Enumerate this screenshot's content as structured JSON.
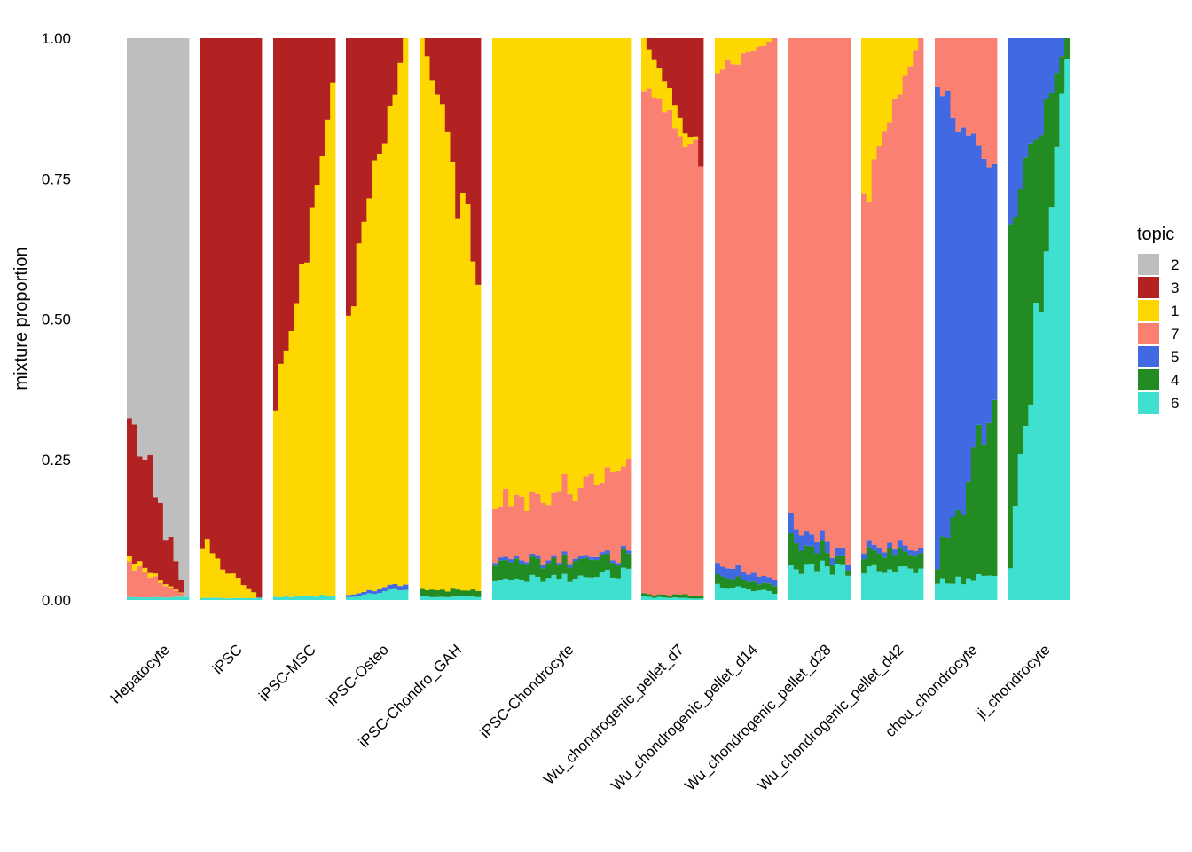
{
  "chart_data": {
    "type": "structure-plot (stacked bar, one bar per cell)",
    "title": "",
    "xlabel": "",
    "ylabel": "mixture proportion",
    "ylim": [
      0,
      1
    ],
    "yticks": [
      {
        "value": 0.0,
        "label": "0.00"
      },
      {
        "value": 0.25,
        "label": "0.25"
      },
      {
        "value": 0.5,
        "label": "0.50"
      },
      {
        "value": 0.75,
        "label": "0.75"
      },
      {
        "value": 1.0,
        "label": "1.00"
      }
    ],
    "legend": {
      "title": "topic",
      "position": "right",
      "items": [
        {
          "topic": "2",
          "color": "#BEBEBE"
        },
        {
          "topic": "3",
          "color": "#B22222"
        },
        {
          "topic": "1",
          "color": "#FFD700"
        },
        {
          "topic": "7",
          "color": "#FA8072"
        },
        {
          "topic": "5",
          "color": "#4169E1"
        },
        {
          "topic": "4",
          "color": "#228B22"
        },
        {
          "topic": "6",
          "color": "#40E0D0"
        }
      ]
    },
    "stack_order_bottom_to_top": [
      "6",
      "4",
      "5",
      "7",
      "1",
      "3",
      "2"
    ],
    "groups": [
      {
        "name": "Hepatocyte",
        "profile": {
          "6": [
            0.005,
            0.005
          ],
          "7": [
            0.06,
            0.0
          ],
          "3": [
            0.26,
            0.0
          ],
          "1": [
            0.01,
            0.0
          ],
          "2": [
            0.665,
            0.995
          ]
        }
      },
      {
        "name": "iPSC",
        "profile": {
          "6": [
            0.004,
            0.003
          ],
          "1": [
            0.095,
            0.0
          ],
          "3": [
            0.901,
            0.997
          ]
        }
      },
      {
        "name": "iPSC-MSC",
        "profile": {
          "6": [
            0.006,
            0.008
          ],
          "1": [
            0.32,
            0.91
          ],
          "3": [
            0.674,
            0.082
          ]
        }
      },
      {
        "name": "iPSC-Osteo",
        "profile": {
          "6": [
            0.005,
            0.02
          ],
          "5": [
            0.003,
            0.01
          ],
          "1": [
            0.5,
            0.97
          ],
          "3": [
            0.492,
            0.0
          ]
        }
      },
      {
        "name": "iPSC-Chondro_GAH",
        "profile": {
          "6": [
            0.006,
            0.006
          ],
          "4": [
            0.012,
            0.012
          ],
          "1": [
            0.982,
            0.582
          ],
          "3": [
            0.0,
            0.4
          ]
        }
      },
      {
        "name": "iPSC-Chondrocyte",
        "profile": {
          "6": [
            0.03,
            0.05
          ],
          "4": [
            0.03,
            0.03
          ],
          "5": [
            0.005,
            0.005
          ],
          "7": [
            0.09,
            0.16
          ],
          "1": [
            0.845,
            0.755
          ]
        }
      },
      {
        "name": "Wu_chondrogenic_pellet_d7",
        "profile": {
          "6": [
            0.005,
            0.003
          ],
          "4": [
            0.005,
            0.005
          ],
          "7": [
            0.91,
            0.78
          ],
          "1": [
            0.08,
            0.0
          ],
          "3": [
            0.0,
            0.212
          ]
        }
      },
      {
        "name": "Wu_chondrogenic_pellet_d14",
        "profile": {
          "6": [
            0.03,
            0.01
          ],
          "4": [
            0.02,
            0.01
          ],
          "5": [
            0.02,
            0.01
          ],
          "7": [
            0.87,
            0.97
          ],
          "1": [
            0.06,
            0.0
          ]
        }
      },
      {
        "name": "Wu_chondrogenic_pellet_d28",
        "profile": {
          "6": [
            0.06,
            0.05
          ],
          "4": [
            0.05,
            0.01
          ],
          "5": [
            0.03,
            0.01
          ],
          "7": [
            0.86,
            0.93
          ]
        }
      },
      {
        "name": "Wu_chondrogenic_pellet_d42",
        "profile": {
          "6": [
            0.05,
            0.06
          ],
          "4": [
            0.03,
            0.03
          ],
          "5": [
            0.01,
            0.01
          ],
          "7": [
            0.64,
            0.9
          ],
          "1": [
            0.27,
            0.0
          ]
        }
      },
      {
        "name": "chou_chondrocyte",
        "profile": {
          "6": [
            0.03,
            0.04
          ],
          "4": [
            0.03,
            0.3
          ],
          "5": [
            0.85,
            0.43
          ],
          "7": [
            0.09,
            0.23
          ]
        }
      },
      {
        "name": "ji_chondrocyte",
        "profile": {
          "6": [
            0.06,
            0.97
          ],
          "4": [
            0.6,
            0.03
          ],
          "5": [
            0.34,
            0.0
          ]
        }
      }
    ]
  }
}
